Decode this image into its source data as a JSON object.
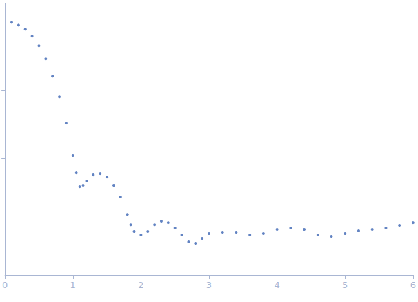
{
  "chart_data": {
    "type": "scatter",
    "color": "#3b64b3",
    "marker": "circle",
    "log": "y",
    "grid": false,
    "tick_labels": "x",
    "xlim": [
      0,
      6
    ],
    "xticks": [
      0,
      1,
      2,
      3,
      4,
      5,
      6
    ],
    "ylim": [
      0.0002,
      1.8
    ],
    "yticks": [
      0.001,
      0.01,
      0.1,
      1
    ],
    "x": [
      0.1,
      0.2,
      0.3,
      0.4,
      0.5,
      0.6,
      0.7,
      0.8,
      0.9,
      1.0,
      1.05,
      1.1,
      1.15,
      1.2,
      1.3,
      1.4,
      1.5,
      1.6,
      1.7,
      1.8,
      1.85,
      1.9,
      2.0,
      2.1,
      2.2,
      2.3,
      2.4,
      2.5,
      2.6,
      2.7,
      2.8,
      2.9,
      3.0,
      3.2,
      3.4,
      3.6,
      3.8,
      4.0,
      4.2,
      4.4,
      4.6,
      4.8,
      5.0,
      5.2,
      5.4,
      5.6,
      5.8,
      6.0
    ],
    "values": [
      0.955,
      0.87,
      0.758,
      0.601,
      0.435,
      0.28,
      0.157,
      0.0784,
      0.0326,
      0.011,
      0.00615,
      0.00387,
      0.00406,
      0.00466,
      0.00574,
      0.00601,
      0.00535,
      0.00406,
      0.00274,
      0.00153,
      0.00108,
      0.000861,
      0.000766,
      0.000861,
      0.00108,
      0.00122,
      0.00116,
      0.000966,
      0.000766,
      0.000608,
      0.000581,
      0.000683,
      0.000803,
      0.000841,
      0.000841,
      0.000766,
      0.000803,
      0.000922,
      0.000966,
      0.000922,
      0.000766,
      0.000731,
      0.000803,
      0.000881,
      0.000922,
      0.000966,
      0.00106,
      0.00116
    ]
  }
}
